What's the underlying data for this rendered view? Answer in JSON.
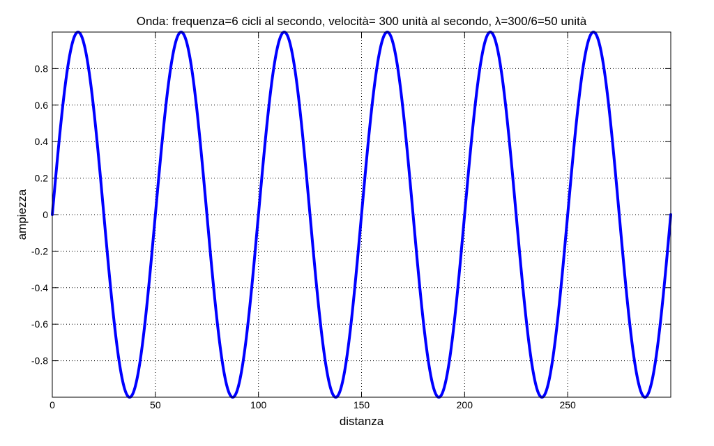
{
  "chart_data": {
    "type": "line",
    "title": "Onda: frequenza=6 cicli al secondo, velocità= 300 unità al secondo, λ=300/6=50 unità",
    "xlabel": "distanza",
    "ylabel": "ampiezza",
    "xlim": [
      0,
      300
    ],
    "ylim": [
      -1,
      1
    ],
    "x_ticks": [
      0,
      50,
      100,
      150,
      200,
      250
    ],
    "x_tick_labels": [
      "0",
      "50",
      "100",
      "150",
      "200",
      "250"
    ],
    "y_ticks": [
      0.8,
      0.6,
      0.4,
      0.2,
      0,
      -0.2,
      -0.4,
      -0.6,
      -0.8
    ],
    "y_tick_labels": [
      "0.8",
      "0.6",
      "0.4",
      "0.2",
      "0",
      "-0.2",
      "-0.4",
      "-0.6",
      "-0.8"
    ],
    "grid": true,
    "series": [
      {
        "color": "#0000ff",
        "function": "sin(2*pi*x/50)",
        "wavelength": 50,
        "amplitude": 1,
        "x_start": 0,
        "x_end": 300
      }
    ]
  }
}
